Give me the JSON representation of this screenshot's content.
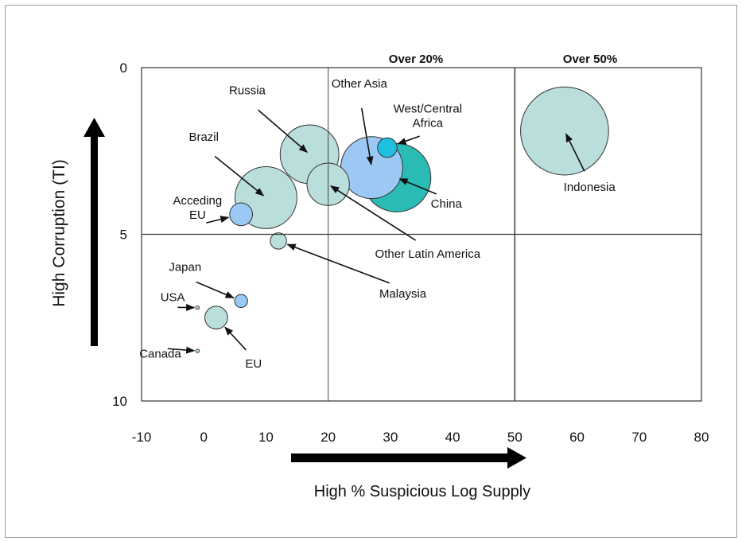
{
  "chart_data": {
    "type": "bubble",
    "xlabel": "High % Suspicious Log Supply",
    "ylabel": "High Corruption (TI)",
    "xlim": [
      -10,
      80
    ],
    "ylim": [
      0,
      10
    ],
    "y_inverted": true,
    "x_ticks": [
      "-10",
      "0",
      "10",
      "20",
      "30",
      "40",
      "50",
      "60",
      "70",
      "80"
    ],
    "y_ticks": [
      "0",
      "5",
      "10"
    ],
    "region_labels": [
      {
        "text": "Over 20%",
        "x": 30
      },
      {
        "text": "Over 50%",
        "x": 60
      }
    ],
    "reference_lines": {
      "x": [
        20,
        50
      ],
      "y": [
        5
      ]
    },
    "colors": {
      "light": "#b9dedc",
      "blue": "#9cc9f4",
      "cyan": "#1ec0de",
      "teal": "#2abcb4",
      "stroke": "#333333"
    },
    "points": [
      {
        "label": "Indonesia",
        "x": 58,
        "y": 1.9,
        "size": 27,
        "color": "light",
        "label_x": 62,
        "label_y": 3.7
      },
      {
        "label": "China",
        "x": 31,
        "y": 3.3,
        "size": 21,
        "color": "teal",
        "label_x": 39,
        "label_y": 4.2
      },
      {
        "label": "Other Asia",
        "x": 27,
        "y": 3.0,
        "size": 19,
        "color": "blue",
        "label_x": 25,
        "label_y": 0.6
      },
      {
        "label": "Russia",
        "x": 17,
        "y": 2.6,
        "size": 18,
        "color": "light",
        "label_x": 7,
        "label_y": 0.8
      },
      {
        "label": "Brazil",
        "x": 10,
        "y": 3.9,
        "size": 19,
        "color": "light",
        "label_x": 0,
        "label_y": 2.2
      },
      {
        "label": "Other Latin America",
        "x": 20,
        "y": 3.5,
        "size": 13,
        "color": "light",
        "label_x": 36,
        "label_y": 5.7
      },
      {
        "label": "Other Latin America",
        "x": 20,
        "y": 3.5,
        "size": 13,
        "color": "light"
      },
      {
        "label": "West/Central Africa",
        "label_lines": [
          "West/Central",
          "Africa"
        ],
        "x": 29.5,
        "y": 2.4,
        "size": 6,
        "color": "cyan",
        "label_x": 36,
        "label_y": 1.35
      },
      {
        "label": "Acceding EU",
        "label_lines": [
          "Acceding",
          "EU"
        ],
        "x": 6,
        "y": 4.4,
        "size": 7,
        "color": "blue",
        "label_x": -1,
        "label_y": 4.1
      },
      {
        "label": "Malaysia",
        "x": 12,
        "y": 5.2,
        "size": 5,
        "color": "light",
        "label_x": 32,
        "label_y": 6.9
      },
      {
        "label": "Japan",
        "x": 6,
        "y": 7.0,
        "size": 4,
        "color": "blue",
        "label_x": -3,
        "label_y": 6.1
      },
      {
        "label": "EU",
        "x": 2,
        "y": 7.5,
        "size": 7,
        "color": "light",
        "label_x": 8,
        "label_y": 9.0
      },
      {
        "label": "USA",
        "x": -1,
        "y": 7.2,
        "size": 0.6,
        "color": "light",
        "label_x": -5,
        "label_y": 7.0
      },
      {
        "label": "Canada",
        "x": -1,
        "y": 8.5,
        "size": 0.6,
        "color": "light",
        "label_x": -7,
        "label_y": 8.7
      }
    ]
  }
}
